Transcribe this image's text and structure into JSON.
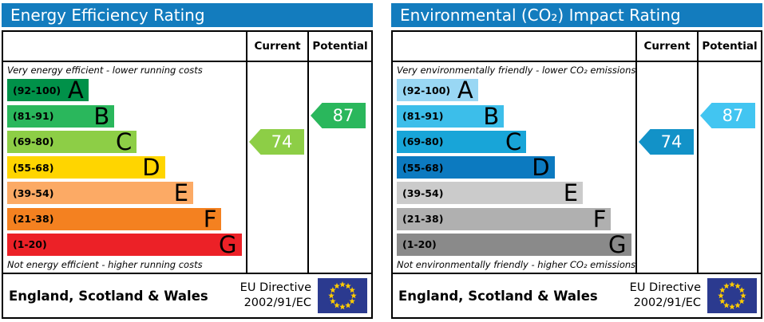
{
  "panels": [
    {
      "title": "Energy Efficiency Rating",
      "columns": {
        "current": "Current",
        "potential": "Potential"
      },
      "top_caption": "Very energy efficient - lower running costs",
      "bottom_caption": "Not energy efficient - higher running costs",
      "bands": [
        {
          "range": "(92-100)",
          "letter": "A",
          "color": "#009149",
          "width_pct": 34.5
        },
        {
          "range": "(81-91)",
          "letter": "B",
          "color": "#2ab75c",
          "width_pct": 45.5
        },
        {
          "range": "(69-80)",
          "letter": "C",
          "color": "#8dce46",
          "width_pct": 55
        },
        {
          "range": "(55-68)",
          "letter": "D",
          "color": "#ffd500",
          "width_pct": 67
        },
        {
          "range": "(39-54)",
          "letter": "E",
          "color": "#fcaa65",
          "width_pct": 79
        },
        {
          "range": "(21-38)",
          "letter": "F",
          "color": "#f48120",
          "width_pct": 91
        },
        {
          "range": "(1-20)",
          "letter": "G",
          "color": "#ec2127",
          "width_pct": 99.5
        }
      ],
      "current": {
        "value": "74",
        "band_index": 2,
        "color": "#8dce46"
      },
      "potential": {
        "value": "87",
        "band_index": 1,
        "color": "#2ab75c"
      },
      "footer": {
        "region": "England, Scotland & Wales",
        "directive_line1": "EU Directive",
        "directive_line2": "2002/91/EC"
      }
    },
    {
      "title": "Environmental (CO₂) Impact Rating",
      "columns": {
        "current": "Current",
        "potential": "Potential"
      },
      "top_caption": "Very environmentally friendly - lower CO₂ emissions",
      "bottom_caption": "Not environmentally friendly - higher CO₂ emissions",
      "bands": [
        {
          "range": "(92-100)",
          "letter": "A",
          "color": "#99d7f4",
          "width_pct": 34.5
        },
        {
          "range": "(81-91)",
          "letter": "B",
          "color": "#3cbeea",
          "width_pct": 45.5
        },
        {
          "range": "(69-80)",
          "letter": "C",
          "color": "#18a5d8",
          "width_pct": 55
        },
        {
          "range": "(55-68)",
          "letter": "D",
          "color": "#0c7ac0",
          "width_pct": 67
        },
        {
          "range": "(39-54)",
          "letter": "E",
          "color": "#cbcbcb",
          "width_pct": 79
        },
        {
          "range": "(21-38)",
          "letter": "F",
          "color": "#b0b0b0",
          "width_pct": 91
        },
        {
          "range": "(1-20)",
          "letter": "G",
          "color": "#8a8a8a",
          "width_pct": 99.5
        }
      ],
      "current": {
        "value": "74",
        "band_index": 2,
        "color": "#1292c8"
      },
      "potential": {
        "value": "87",
        "band_index": 1,
        "color": "#42c5f1"
      },
      "footer": {
        "region": "England, Scotland & Wales",
        "directive_line1": "EU Directive",
        "directive_line2": "2002/91/EC"
      }
    }
  ],
  "colors": {
    "header_bar": "#137cbe",
    "eu_flag_blue": "#2b3a8f",
    "eu_star_yellow": "#ffcc00",
    "border": "#000000"
  },
  "chart_data": [
    {
      "type": "bar",
      "title": "Energy Efficiency Rating",
      "categories": [
        "A (92-100)",
        "B (81-91)",
        "C (69-80)",
        "D (55-68)",
        "E (39-54)",
        "F (21-38)",
        "G (1-20)"
      ],
      "series": [
        {
          "name": "Current",
          "value": 74,
          "band": "C"
        },
        {
          "name": "Potential",
          "value": 87,
          "band": "B"
        }
      ],
      "scale_range": [
        1,
        100
      ],
      "top_caption": "Very energy efficient - lower running costs",
      "bottom_caption": "Not energy efficient - higher running costs",
      "footer": "England, Scotland & Wales — EU Directive 2002/91/EC"
    },
    {
      "type": "bar",
      "title": "Environmental (CO₂) Impact Rating",
      "categories": [
        "A (92-100)",
        "B (81-91)",
        "C (69-80)",
        "D (55-68)",
        "E (39-54)",
        "F (21-38)",
        "G (1-20)"
      ],
      "series": [
        {
          "name": "Current",
          "value": 74,
          "band": "C"
        },
        {
          "name": "Potential",
          "value": 87,
          "band": "B"
        }
      ],
      "scale_range": [
        1,
        100
      ],
      "top_caption": "Very environmentally friendly - lower CO₂ emissions",
      "bottom_caption": "Not environmentally friendly - higher CO₂ emissions",
      "footer": "England, Scotland & Wales — EU Directive 2002/91/EC"
    }
  ]
}
